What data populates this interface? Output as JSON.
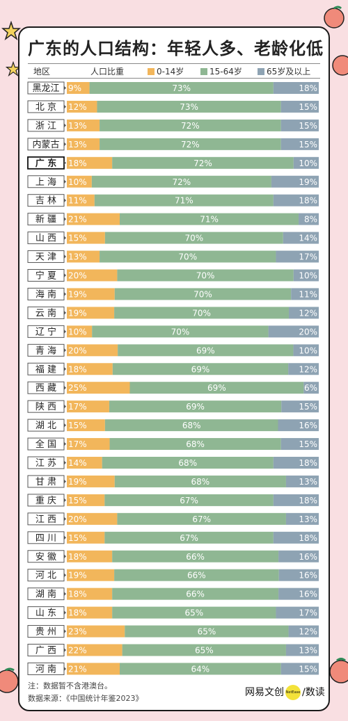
{
  "title": "广东的人口结构：年轻人多、老龄化低",
  "header": {
    "region": "地区",
    "share": "人口比重"
  },
  "chart_data": {
    "type": "bar",
    "stacked": true,
    "orientation": "horizontal",
    "unit": "%",
    "highlight": "广东",
    "series": [
      {
        "name": "0-14岁",
        "color": "#f2b65b"
      },
      {
        "name": "15-64岁",
        "color": "#8fb793"
      },
      {
        "name": "65岁及以上",
        "color": "#8ea3b3"
      }
    ],
    "rows": [
      {
        "region": "黑龙江",
        "values": [
          9,
          73,
          18
        ]
      },
      {
        "region": "北京",
        "values": [
          12,
          73,
          15
        ]
      },
      {
        "region": "浙江",
        "values": [
          13,
          72,
          15
        ]
      },
      {
        "region": "内蒙古",
        "values": [
          13,
          72,
          15
        ]
      },
      {
        "region": "广东",
        "values": [
          18,
          72,
          10
        ]
      },
      {
        "region": "上海",
        "values": [
          10,
          72,
          19
        ]
      },
      {
        "region": "吉林",
        "values": [
          11,
          71,
          18
        ]
      },
      {
        "region": "新疆",
        "values": [
          21,
          71,
          8
        ]
      },
      {
        "region": "山西",
        "values": [
          15,
          70,
          14
        ]
      },
      {
        "region": "天津",
        "values": [
          13,
          70,
          17
        ]
      },
      {
        "region": "宁夏",
        "values": [
          20,
          70,
          10
        ]
      },
      {
        "region": "海南",
        "values": [
          19,
          70,
          11
        ]
      },
      {
        "region": "云南",
        "values": [
          19,
          70,
          12
        ]
      },
      {
        "region": "辽宁",
        "values": [
          10,
          70,
          20
        ]
      },
      {
        "region": "青海",
        "values": [
          20,
          69,
          10
        ]
      },
      {
        "region": "福建",
        "values": [
          18,
          69,
          12
        ]
      },
      {
        "region": "西藏",
        "values": [
          25,
          69,
          6
        ]
      },
      {
        "region": "陕西",
        "values": [
          17,
          69,
          15
        ]
      },
      {
        "region": "湖北",
        "values": [
          15,
          68,
          16
        ]
      },
      {
        "region": "全国",
        "values": [
          17,
          68,
          15
        ]
      },
      {
        "region": "江苏",
        "values": [
          14,
          68,
          18
        ]
      },
      {
        "region": "甘肃",
        "values": [
          19,
          68,
          13
        ]
      },
      {
        "region": "重庆",
        "values": [
          15,
          67,
          18
        ]
      },
      {
        "region": "江西",
        "values": [
          20,
          67,
          13
        ]
      },
      {
        "region": "四川",
        "values": [
          15,
          67,
          18
        ]
      },
      {
        "region": "安徽",
        "values": [
          18,
          66,
          16
        ]
      },
      {
        "region": "河北",
        "values": [
          19,
          66,
          16
        ]
      },
      {
        "region": "湖南",
        "values": [
          18,
          66,
          16
        ]
      },
      {
        "region": "山东",
        "values": [
          18,
          65,
          17
        ]
      },
      {
        "region": "贵州",
        "values": [
          23,
          65,
          12
        ]
      },
      {
        "region": "广西",
        "values": [
          22,
          65,
          13
        ]
      },
      {
        "region": "河南",
        "values": [
          21,
          64,
          15
        ]
      }
    ]
  },
  "footer": {
    "note": "注：数据暂不含港澳台。",
    "source": "数据来源：《中国统计年鉴2023》"
  },
  "brand": {
    "left": "网易文创",
    "badge": "NetEase",
    "separator": "/",
    "right": "数读"
  }
}
